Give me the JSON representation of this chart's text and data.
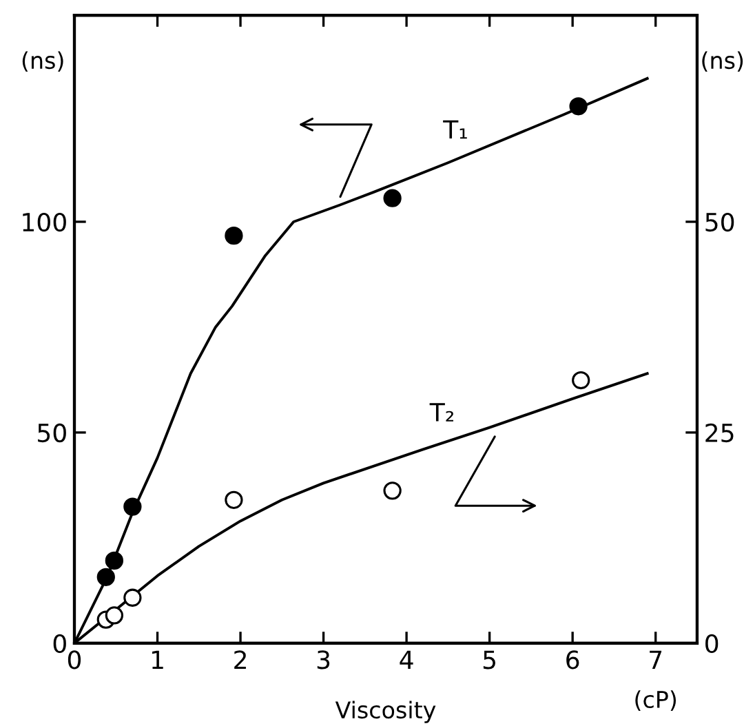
{
  "chart_data": {
    "type": "line",
    "xlabel": "Viscosity",
    "ylabel": "(ns)",
    "y2label": "(ns)",
    "xlim": [
      0,
      7.5
    ],
    "xticks": [
      0,
      1,
      2,
      3,
      4,
      5,
      6,
      7
    ],
    "ylim": [
      0,
      149
    ],
    "yticks": [
      0,
      50,
      100
    ],
    "y2lim": [
      0,
      74.5
    ],
    "y2ticks": [
      0,
      25,
      50
    ],
    "grid": false,
    "series": [
      {
        "type": "scatter",
        "marker": "circle",
        "color": "#000000",
        "x": [
          0.38,
          0.48,
          0.7,
          1.92,
          3.83,
          6.07
        ],
        "values": [
          15.7,
          19.6,
          32.4,
          96.7,
          105.6,
          127.4
        ]
      },
      {
        "name": "T₁",
        "line_style": "solid",
        "color": "#000000",
        "x": [
          0,
          0.4,
          0.7,
          1.0,
          1.4,
          1.7,
          1.9,
          2.3,
          2.64,
          3.2,
          3.6,
          4.5,
          5.9,
          6.9
        ],
        "values": [
          0,
          16,
          31,
          44,
          64,
          75,
          80,
          92,
          100,
          104,
          107,
          114,
          125.5,
          134
        ]
      },
      {
        "type": "scatter",
        "axis": "y2",
        "marker": "circle",
        "color": "#ffffff",
        "x": [
          0.38,
          0.48,
          0.7,
          1.92,
          3.83,
          6.1
        ],
        "values": [
          2.8,
          3.3,
          5.4,
          17,
          18.1,
          31.2
        ]
      },
      {
        "name": "T₂",
        "axis": "y2",
        "line_style": "solid",
        "color": "#000000",
        "x": [
          0,
          0.5,
          1,
          1.5,
          2,
          2.5,
          3,
          3.6,
          4.2,
          5,
          6,
          6.9
        ],
        "values": [
          0,
          4,
          8,
          11.5,
          14.5,
          17,
          19,
          21,
          23,
          25.6,
          29,
          32
        ]
      }
    ],
    "annotations": [
      "(cP)"
    ]
  }
}
